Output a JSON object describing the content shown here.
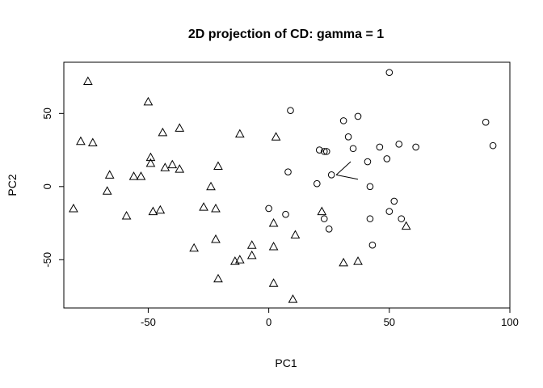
{
  "chart_data": {
    "type": "scatter",
    "title": "2D projection of CD: gamma =  1",
    "xlabel": "PC1",
    "ylabel": "PC2",
    "xlim": [
      -85,
      100
    ],
    "ylim": [
      -83,
      85
    ],
    "xticks": [
      -50,
      0,
      50,
      100
    ],
    "yticks": [
      -50,
      0,
      50
    ],
    "grid": false,
    "legend": "none",
    "series": [
      {
        "marker": "triangle",
        "points": [
          {
            "x": -75,
            "y": 72
          },
          {
            "x": -50,
            "y": 58
          },
          {
            "x": -78,
            "y": 31
          },
          {
            "x": -73,
            "y": 30
          },
          {
            "x": -37,
            "y": 40
          },
          {
            "x": -44,
            "y": 37
          },
          {
            "x": -12,
            "y": 36
          },
          {
            "x": 3,
            "y": 34
          },
          {
            "x": -49,
            "y": 20
          },
          {
            "x": -49,
            "y": 16
          },
          {
            "x": -43,
            "y": 13
          },
          {
            "x": -40,
            "y": 15
          },
          {
            "x": -37,
            "y": 12
          },
          {
            "x": -21,
            "y": 14
          },
          {
            "x": -66,
            "y": 8
          },
          {
            "x": -56,
            "y": 7
          },
          {
            "x": -53,
            "y": 7
          },
          {
            "x": -24,
            "y": 0
          },
          {
            "x": -67,
            "y": -3
          },
          {
            "x": -81,
            "y": -15
          },
          {
            "x": -59,
            "y": -20
          },
          {
            "x": -48,
            "y": -17
          },
          {
            "x": -45,
            "y": -16
          },
          {
            "x": -27,
            "y": -14
          },
          {
            "x": -22,
            "y": -15
          },
          {
            "x": 2,
            "y": -25
          },
          {
            "x": 22,
            "y": -17
          },
          {
            "x": -22,
            "y": -36
          },
          {
            "x": -7,
            "y": -40
          },
          {
            "x": 2,
            "y": -41
          },
          {
            "x": 11,
            "y": -33
          },
          {
            "x": -31,
            "y": -42
          },
          {
            "x": -7,
            "y": -47
          },
          {
            "x": -12,
            "y": -50
          },
          {
            "x": -14,
            "y": -51
          },
          {
            "x": 31,
            "y": -52
          },
          {
            "x": 37,
            "y": -51
          },
          {
            "x": 57,
            "y": -27
          },
          {
            "x": -21,
            "y": -63
          },
          {
            "x": 2,
            "y": -66
          },
          {
            "x": 10,
            "y": -77
          }
        ]
      },
      {
        "marker": "circle",
        "points": [
          {
            "x": 50,
            "y": 78
          },
          {
            "x": 9,
            "y": 52
          },
          {
            "x": 37,
            "y": 48
          },
          {
            "x": 31,
            "y": 45
          },
          {
            "x": 90,
            "y": 44
          },
          {
            "x": 33,
            "y": 34
          },
          {
            "x": 35,
            "y": 26
          },
          {
            "x": 46,
            "y": 27
          },
          {
            "x": 54,
            "y": 29
          },
          {
            "x": 61,
            "y": 27
          },
          {
            "x": 93,
            "y": 28
          },
          {
            "x": 21,
            "y": 25
          },
          {
            "x": 23,
            "y": 24
          },
          {
            "x": 24,
            "y": 24
          },
          {
            "x": 41,
            "y": 17
          },
          {
            "x": 49,
            "y": 19
          },
          {
            "x": 8,
            "y": 10
          },
          {
            "x": 26,
            "y": 8
          },
          {
            "x": 20,
            "y": 2
          },
          {
            "x": 42,
            "y": 0
          },
          {
            "x": 0,
            "y": -15
          },
          {
            "x": 52,
            "y": -10
          },
          {
            "x": 50,
            "y": -17
          },
          {
            "x": 7,
            "y": -19
          },
          {
            "x": 23,
            "y": -22
          },
          {
            "x": 42,
            "y": -22
          },
          {
            "x": 55,
            "y": -22
          },
          {
            "x": 25,
            "y": -29
          },
          {
            "x": 43,
            "y": -40
          }
        ]
      }
    ],
    "arrows": [
      {
        "from": [
          28,
          8
        ],
        "to": [
          34,
          17
        ]
      },
      {
        "from": [
          28,
          8
        ],
        "to": [
          37,
          5
        ]
      }
    ]
  }
}
